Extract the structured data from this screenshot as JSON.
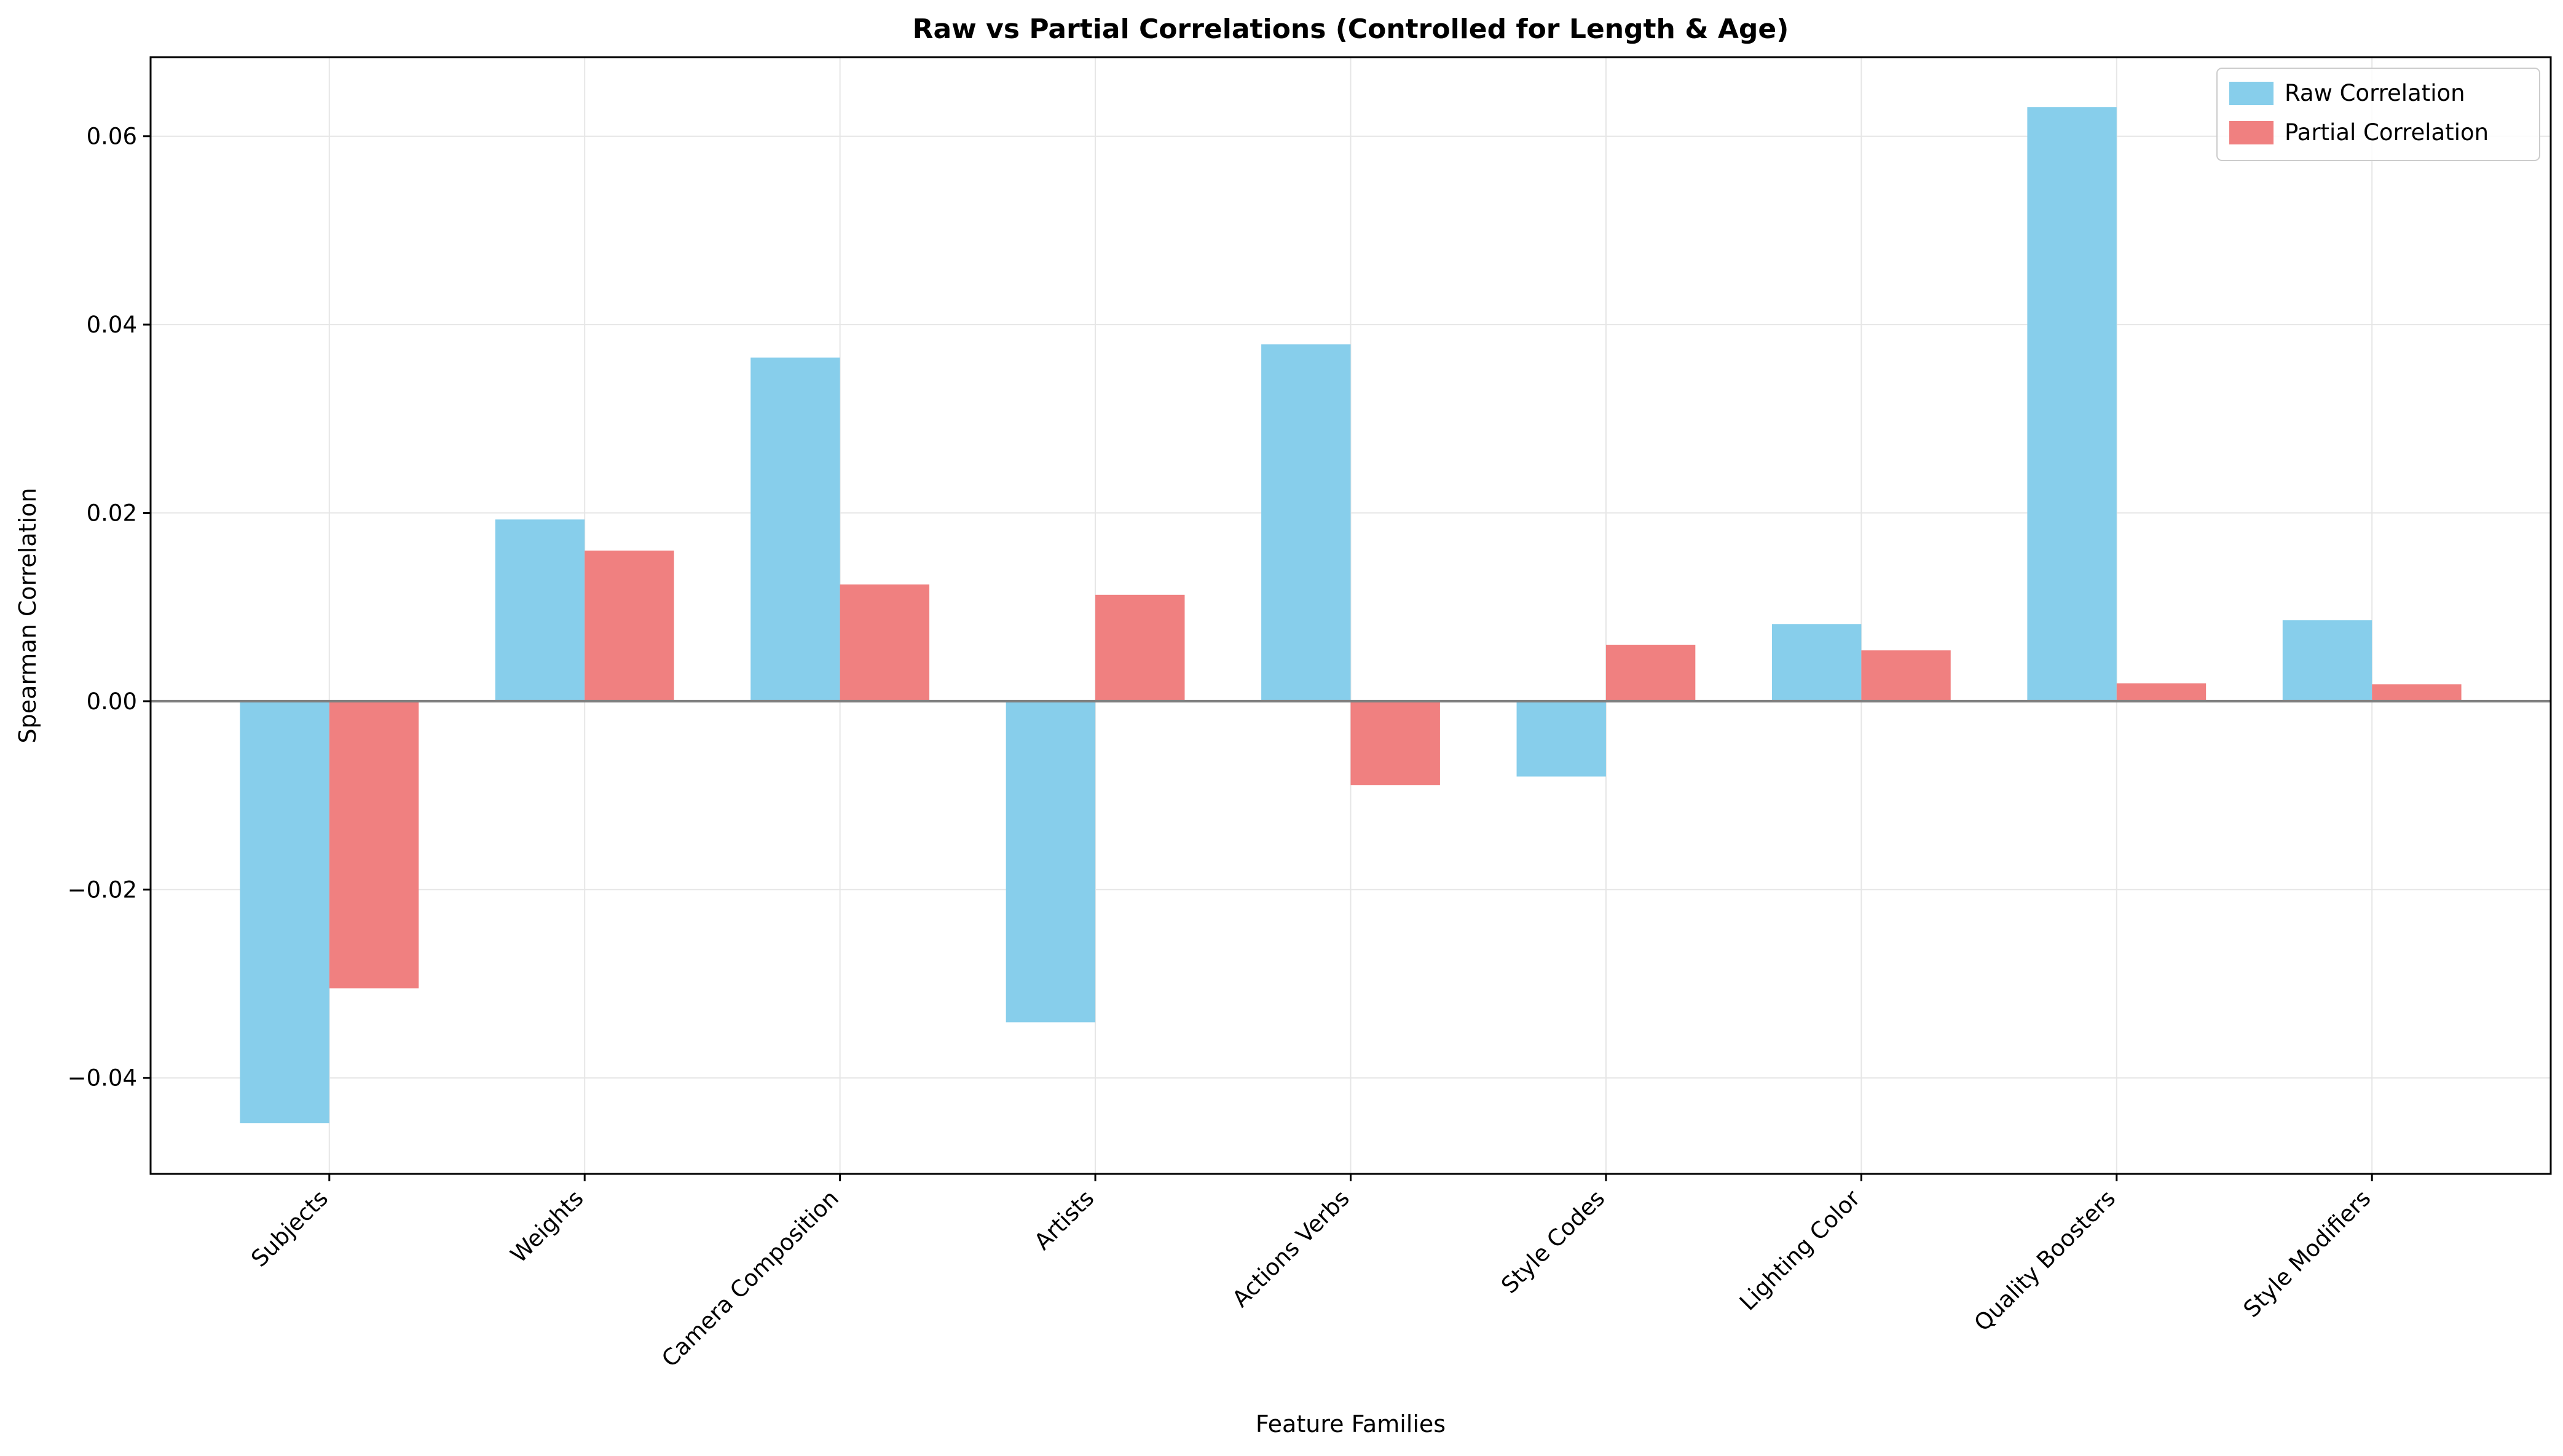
{
  "chart_data": {
    "type": "bar",
    "title": "Raw vs Partial Correlations (Controlled for Length & Age)",
    "xlabel": "Feature Families",
    "ylabel": "Spearman Correlation",
    "categories": [
      "Subjects",
      "Weights",
      "Camera Composition",
      "Artists",
      "Actions Verbs",
      "Style Codes",
      "Lighting Color",
      "Quality Boosters",
      "Style Modifiers"
    ],
    "series": [
      {
        "name": "Raw Correlation",
        "color": "#87CEEB",
        "values": [
          -0.0448,
          0.0193,
          0.0365,
          -0.0341,
          0.0379,
          -0.008,
          0.0082,
          0.0631,
          0.0086
        ]
      },
      {
        "name": "Partial Correlation",
        "color": "#F08080",
        "values": [
          -0.0305,
          0.016,
          0.0124,
          0.0113,
          -0.0089,
          0.006,
          0.0054,
          0.0019,
          0.0018
        ]
      }
    ],
    "ylim": [
      -0.0502,
      0.0684
    ],
    "yticks": [
      -0.04,
      -0.02,
      0.0,
      0.02,
      0.04,
      0.06
    ],
    "ytick_labels": [
      "−0.04",
      "−0.02",
      "0.00",
      "0.02",
      "0.04",
      "0.06"
    ],
    "grid": true,
    "zero_line": true,
    "legend_position": "top-right"
  }
}
